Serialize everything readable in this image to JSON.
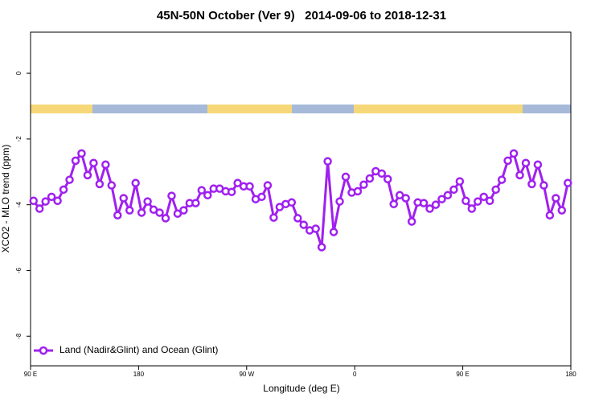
{
  "chart_data": {
    "type": "line",
    "title": "45N-50N October (Ver 9)   2014-09-06 to 2018-12-31",
    "xlabel": "Longitude (deg E)",
    "ylabel": "XCO2 - MLO trend (ppm)",
    "xlim": [
      90,
      540
    ],
    "xticks": [
      {
        "value": 90,
        "label": "90 E"
      },
      {
        "value": 180,
        "label": "180"
      },
      {
        "value": 270,
        "label": "90 W"
      },
      {
        "value": 360,
        "label": "0"
      },
      {
        "value": 450,
        "label": "90 E"
      },
      {
        "value": 540,
        "label": "180"
      }
    ],
    "ylim": [
      -8.9,
      1.25
    ],
    "yticks": [
      0,
      -2,
      -4,
      -6,
      -8
    ],
    "legend": "bottom-left",
    "x": [
      92.5,
      97.5,
      102.5,
      107.5,
      112.5,
      117.5,
      122.5,
      127.5,
      132.5,
      137.5,
      142.5,
      147.5,
      152.5,
      157.5,
      162.5,
      167.5,
      172.5,
      177.5,
      182.5,
      187.5,
      192.5,
      197.5,
      202.5,
      207.5,
      212.5,
      217.5,
      222.5,
      227.5,
      232.5,
      237.5,
      242.5,
      247.5,
      252.5,
      257.5,
      262.5,
      267.5,
      272.5,
      277.5,
      282.5,
      287.5,
      292.5,
      297.5,
      302.5,
      307.5,
      312.5,
      317.5,
      322.5,
      327.5,
      332.5,
      337.5,
      342.5,
      347.5,
      352.5,
      357.5,
      362.5,
      367.5,
      372.5,
      377.5,
      382.5,
      387.5,
      392.5,
      397.5,
      402.5,
      407.5,
      412.5,
      417.5,
      422.5,
      427.5,
      432.5,
      437.5,
      442.5,
      447.5,
      452.5,
      457.5,
      462.5,
      467.5,
      472.5,
      477.5,
      482.5,
      487.5,
      492.5,
      497.5,
      502.5,
      507.5,
      512.5,
      517.5,
      522.5,
      527.5,
      532.5,
      537.5
    ],
    "series": [
      {
        "name": "Land (Nadir&Glint) and Ocean (Glint)",
        "color": "#a020f0",
        "values": [
          -3.88,
          -4.12,
          -3.9,
          -3.76,
          -3.88,
          -3.54,
          -3.24,
          -2.66,
          -2.44,
          -3.1,
          -2.73,
          -3.37,
          -2.78,
          -3.41,
          -4.32,
          -3.8,
          -4.17,
          -3.34,
          -4.24,
          -3.9,
          -4.15,
          -4.24,
          -4.41,
          -3.73,
          -4.27,
          -4.17,
          -3.95,
          -3.95,
          -3.56,
          -3.71,
          -3.51,
          -3.51,
          -3.59,
          -3.61,
          -3.34,
          -3.44,
          -3.44,
          -3.83,
          -3.76,
          -3.41,
          -4.39,
          -4.07,
          -3.98,
          -3.93,
          -4.41,
          -4.61,
          -4.78,
          -4.73,
          -5.29,
          -2.68,
          -4.83,
          -3.9,
          -3.15,
          -3.63,
          -3.59,
          -3.39,
          -3.2,
          -2.98,
          -3.05,
          -3.22,
          -3.98,
          -3.71,
          -3.8,
          -4.51,
          -3.93,
          -3.95,
          -4.12,
          -4.0,
          -3.83,
          -3.71,
          -3.54,
          -3.29,
          -3.88,
          -4.12,
          -3.9,
          -3.76,
          -3.88,
          -3.54,
          -3.24,
          -2.66,
          -2.44,
          -3.1,
          -2.73,
          -3.37,
          -2.78,
          -3.41,
          -4.32,
          -3.8,
          -4.17,
          -3.34
        ]
      }
    ]
  }
}
